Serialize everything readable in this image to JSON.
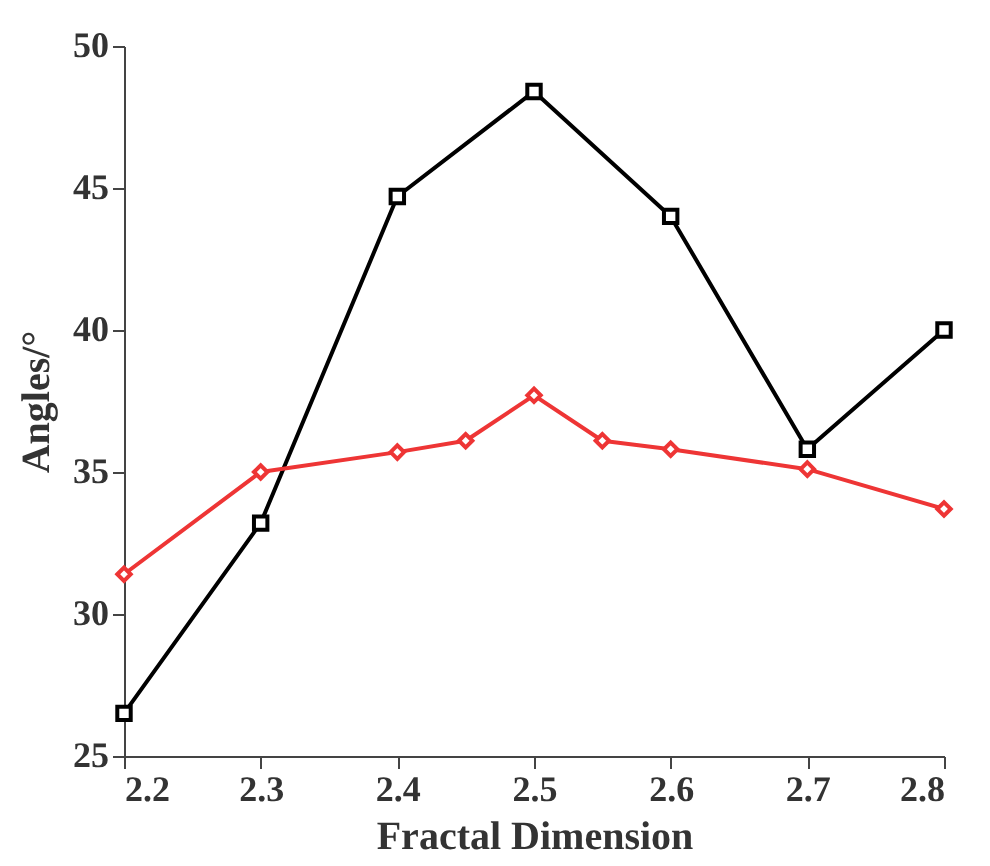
{
  "chart_data": {
    "type": "line",
    "xlabel": "Fractal Dimension",
    "ylabel": "Angles/°",
    "xlim": [
      2.2,
      2.8
    ],
    "xticks": [
      2.2,
      2.3,
      2.4,
      2.5,
      2.6,
      2.7,
      2.8
    ],
    "ylim": [
      25,
      50
    ],
    "yticks": [
      25,
      30,
      35,
      40,
      45,
      50
    ],
    "grid": false,
    "line_style": "solid",
    "series": [
      {
        "color": "#000000",
        "marker": "square",
        "x": [
          2.2,
          2.3,
          2.4,
          2.5,
          2.6,
          2.7,
          2.8
        ],
        "values": [
          26.5,
          33.2,
          44.7,
          48.4,
          44.0,
          35.8,
          40.0
        ]
      },
      {
        "color": "#ee3535",
        "marker": "diamond",
        "x": [
          2.2,
          2.3,
          2.4,
          2.45,
          2.5,
          2.55,
          2.6,
          2.7,
          2.8
        ],
        "values": [
          31.4,
          35.0,
          35.7,
          36.1,
          37.7,
          36.1,
          35.8,
          35.1,
          33.7
        ]
      }
    ]
  }
}
